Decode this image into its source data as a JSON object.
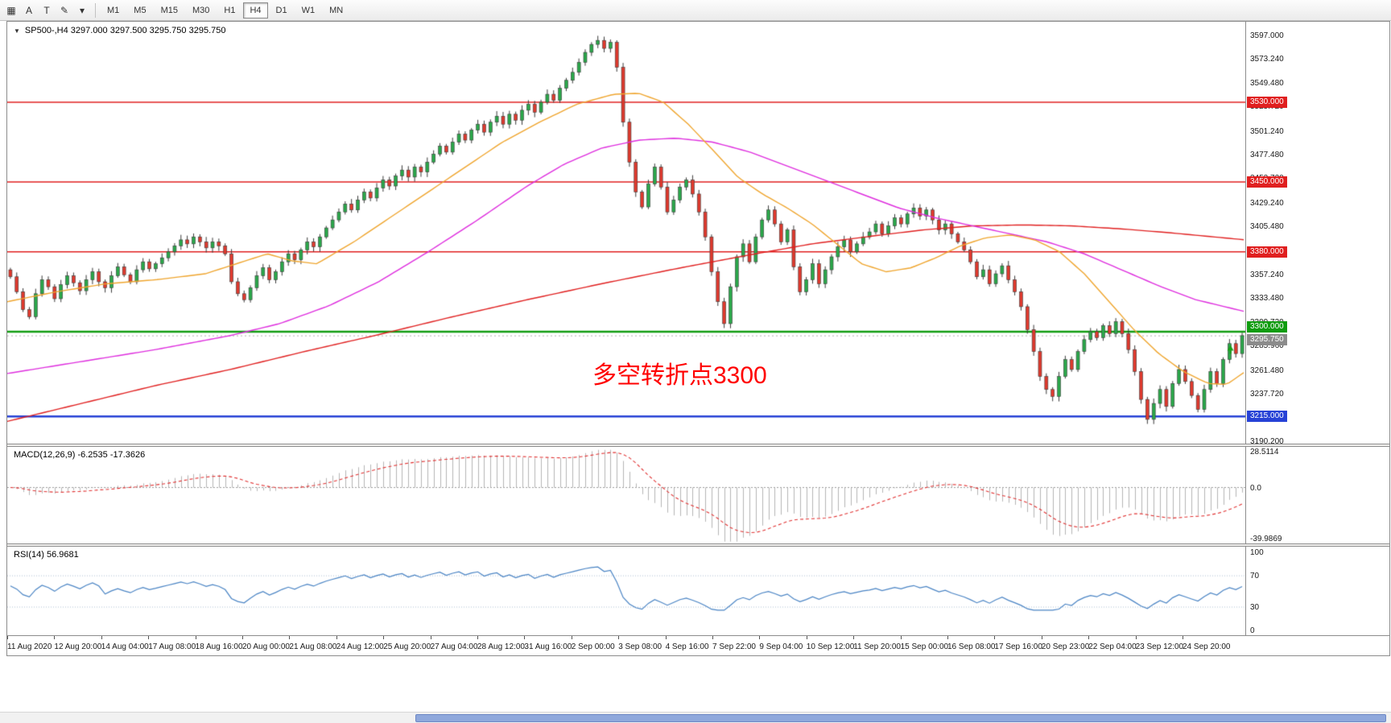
{
  "toolbar": {
    "tools": [
      {
        "name": "chart-grid-icon",
        "glyph": "▦"
      },
      {
        "name": "cursor-icon",
        "glyph": "A"
      },
      {
        "name": "text-icon",
        "glyph": "T"
      },
      {
        "name": "draw-icon",
        "glyph": "✎"
      },
      {
        "name": "draw-dropdown-icon",
        "glyph": "▾"
      }
    ],
    "timeframes": [
      "M1",
      "M5",
      "M15",
      "M30",
      "H1",
      "H4",
      "D1",
      "W1",
      "MN"
    ],
    "selected_timeframe": "H4"
  },
  "chart_data": {
    "type": "candlestick",
    "symbol_title": "SP500-,H4  3297.000 3297.500 3295.750 3295.750",
    "title_icon": "▼",
    "annotation": {
      "text": "多空转折点3300",
      "color": "#ff0000"
    },
    "price_axis": {
      "p_top": 3610.7,
      "p_bottom": 3187.7,
      "labels": [
        "3597.000",
        "3573.240",
        "3549.480",
        "3525.720",
        "3501.240",
        "3477.480",
        "3453.720",
        "3429.240",
        "3405.480",
        "3381.720",
        "3357.240",
        "3333.480",
        "3309.720",
        "3285.960",
        "3261.480",
        "3237.720",
        "3213.960",
        "3190.200"
      ]
    },
    "first_open": 3362,
    "closes": [
      3355,
      3340,
      3322,
      3315,
      3338,
      3352,
      3345,
      3333,
      3347,
      3356,
      3349,
      3341,
      3352,
      3360,
      3350,
      3344,
      3356,
      3365,
      3357,
      3350,
      3362,
      3370,
      3363,
      3368,
      3374,
      3380,
      3386,
      3392,
      3388,
      3395,
      3390,
      3384,
      3390,
      3386,
      3378,
      3350,
      3338,
      3332,
      3344,
      3356,
      3364,
      3352,
      3360,
      3370,
      3378,
      3372,
      3382,
      3390,
      3385,
      3395,
      3404,
      3412,
      3420,
      3428,
      3422,
      3432,
      3440,
      3434,
      3444,
      3452,
      3446,
      3456,
      3462,
      3455,
      3465,
      3460,
      3470,
      3478,
      3486,
      3480,
      3490,
      3498,
      3492,
      3502,
      3508,
      3500,
      3510,
      3516,
      3508,
      3518,
      3512,
      3522,
      3528,
      3520,
      3530,
      3538,
      3532,
      3544,
      3552,
      3560,
      3570,
      3580,
      3588,
      3592,
      3584,
      3590,
      3565,
      3510,
      3470,
      3440,
      3425,
      3448,
      3465,
      3445,
      3420,
      3432,
      3445,
      3452,
      3438,
      3420,
      3395,
      3360,
      3330,
      3308,
      3345,
      3375,
      3388,
      3370,
      3395,
      3412,
      3422,
      3408,
      3390,
      3402,
      3365,
      3340,
      3352,
      3368,
      3348,
      3362,
      3375,
      3385,
      3392,
      3380,
      3388,
      3395,
      3400,
      3408,
      3398,
      3406,
      3414,
      3408,
      3418,
      3424,
      3416,
      3422,
      3412,
      3402,
      3408,
      3398,
      3390,
      3382,
      3370,
      3355,
      3362,
      3348,
      3358,
      3366,
      3352,
      3340,
      3325,
      3302,
      3280,
      3255,
      3242,
      3235,
      3255,
      3272,
      3262,
      3280,
      3292,
      3300,
      3294,
      3306,
      3298,
      3310,
      3298,
      3282,
      3260,
      3232,
      3212,
      3228,
      3242,
      3225,
      3248,
      3262,
      3250,
      3236,
      3222,
      3242,
      3260,
      3248,
      3272,
      3288,
      3278,
      3296
    ],
    "candle_colors": {
      "up": "#2aa84a",
      "down": "#e0392d",
      "outline": "#3a3a3a"
    },
    "levels": [
      {
        "price": 3530,
        "label": "3530.000",
        "color": "#e01f1f",
        "line_width": 1.5
      },
      {
        "price": 3450,
        "label": "3450.000",
        "color": "#e01f1f",
        "line_width": 1.5
      },
      {
        "price": 3380,
        "label": "3380.000",
        "color": "#e01f1f",
        "line_width": 1.5
      },
      {
        "price": 3300,
        "label": "3300.000",
        "color": "#0f9c0f",
        "line_width": 2.5,
        "box_dy": -13
      },
      {
        "price": 3215,
        "label": "3215.000",
        "color": "#2742d6",
        "line_width": 2.5
      }
    ],
    "current_price": {
      "value": 3295.75,
      "label": "3295.750",
      "box_color": "#8c8c8c"
    },
    "ma_lines": [
      {
        "name": "ma-slow",
        "color": "#e02020",
        "anchors": [
          [
            0,
            3210
          ],
          [
            0.06,
            3228
          ],
          [
            0.12,
            3246
          ],
          [
            0.18,
            3262
          ],
          [
            0.24,
            3280
          ],
          [
            0.3,
            3297
          ],
          [
            0.36,
            3315
          ],
          [
            0.42,
            3332
          ],
          [
            0.48,
            3348
          ],
          [
            0.54,
            3363
          ],
          [
            0.6,
            3377
          ],
          [
            0.65,
            3388
          ],
          [
            0.7,
            3396
          ],
          [
            0.74,
            3402
          ],
          [
            0.78,
            3406
          ],
          [
            0.82,
            3407
          ],
          [
            0.86,
            3406
          ],
          [
            0.9,
            3403
          ],
          [
            0.94,
            3399
          ],
          [
            1,
            3392
          ]
        ]
      },
      {
        "name": "ma-mid",
        "color": "#de2ede",
        "anchors": [
          [
            0,
            3258
          ],
          [
            0.06,
            3270
          ],
          [
            0.12,
            3282
          ],
          [
            0.18,
            3296
          ],
          [
            0.22,
            3308
          ],
          [
            0.26,
            3326
          ],
          [
            0.3,
            3350
          ],
          [
            0.34,
            3380
          ],
          [
            0.38,
            3412
          ],
          [
            0.42,
            3446
          ],
          [
            0.45,
            3468
          ],
          [
            0.48,
            3484
          ],
          [
            0.51,
            3492
          ],
          [
            0.54,
            3494
          ],
          [
            0.57,
            3490
          ],
          [
            0.6,
            3480
          ],
          [
            0.63,
            3466
          ],
          [
            0.66,
            3452
          ],
          [
            0.69,
            3438
          ],
          [
            0.72,
            3424
          ],
          [
            0.75,
            3414
          ],
          [
            0.78,
            3406
          ],
          [
            0.81,
            3398
          ],
          [
            0.84,
            3390
          ],
          [
            0.87,
            3378
          ],
          [
            0.9,
            3362
          ],
          [
            0.93,
            3346
          ],
          [
            0.96,
            3332
          ],
          [
            1,
            3320
          ]
        ]
      },
      {
        "name": "ma-fast",
        "color": "#efa52e",
        "anchors": [
          [
            0,
            3330
          ],
          [
            0.04,
            3340
          ],
          [
            0.08,
            3348
          ],
          [
            0.12,
            3352
          ],
          [
            0.16,
            3358
          ],
          [
            0.19,
            3370
          ],
          [
            0.21,
            3378
          ],
          [
            0.23,
            3371
          ],
          [
            0.25,
            3368
          ],
          [
            0.28,
            3390
          ],
          [
            0.31,
            3415
          ],
          [
            0.34,
            3440
          ],
          [
            0.37,
            3465
          ],
          [
            0.4,
            3490
          ],
          [
            0.43,
            3510
          ],
          [
            0.46,
            3528
          ],
          [
            0.49,
            3538
          ],
          [
            0.51,
            3539
          ],
          [
            0.53,
            3530
          ],
          [
            0.55,
            3508
          ],
          [
            0.57,
            3482
          ],
          [
            0.59,
            3455
          ],
          [
            0.61,
            3438
          ],
          [
            0.63,
            3424
          ],
          [
            0.65,
            3408
          ],
          [
            0.67,
            3388
          ],
          [
            0.69,
            3368
          ],
          [
            0.71,
            3360
          ],
          [
            0.73,
            3364
          ],
          [
            0.75,
            3374
          ],
          [
            0.77,
            3386
          ],
          [
            0.79,
            3394
          ],
          [
            0.81,
            3397
          ],
          [
            0.83,
            3392
          ],
          [
            0.85,
            3380
          ],
          [
            0.87,
            3358
          ],
          [
            0.89,
            3330
          ],
          [
            0.91,
            3302
          ],
          [
            0.93,
            3278
          ],
          [
            0.95,
            3260
          ],
          [
            0.97,
            3248
          ],
          [
            0.985,
            3247
          ],
          [
            1,
            3260
          ]
        ]
      }
    ],
    "objects": [
      {
        "type": "arrow-up",
        "x_frac": 0.988,
        "price": 3281,
        "color": "#18a118"
      }
    ],
    "macd": {
      "label": "MACD(12,26,9) -6.2535 -17.3626",
      "fast": 12,
      "slow": 26,
      "signal": 9,
      "v_max": 32,
      "v_min": -44,
      "axis_labels": [
        "28.5114",
        "0.0",
        "-39.9869"
      ],
      "histogram_color": "#b5b5b5",
      "signal_color": "#e03131"
    },
    "rsi": {
      "label": "RSI(14) 56.9681",
      "period": 14,
      "line_color": "#4a84c4",
      "level_lines": [
        70,
        30
      ],
      "axis_labels": [
        "100",
        "70",
        "30",
        "0"
      ]
    },
    "time_axis": {
      "labels": [
        "11 Aug 2020",
        "12 Aug 20:00",
        "14 Aug 04:00",
        "17 Aug 08:00",
        "18 Aug 16:00",
        "20 Aug 00:00",
        "21 Aug 08:00",
        "24 Aug 12:00",
        "25 Aug 20:00",
        "27 Aug 04:00",
        "28 Aug 12:00",
        "31 Aug 16:00",
        "2 Sep 00:00",
        "3 Sep 08:00",
        "4 Sep 16:00",
        "7 Sep 22:00",
        "9 Sep 04:00",
        "10 Sep 12:00",
        "11 Sep 20:00",
        "15 Sep 00:00",
        "16 Sep 08:00",
        "17 Sep 16:00",
        "20 Sep 23:00",
        "22 Sep 04:00",
        "23 Sep 12:00",
        "24 Sep 20:00"
      ]
    }
  }
}
